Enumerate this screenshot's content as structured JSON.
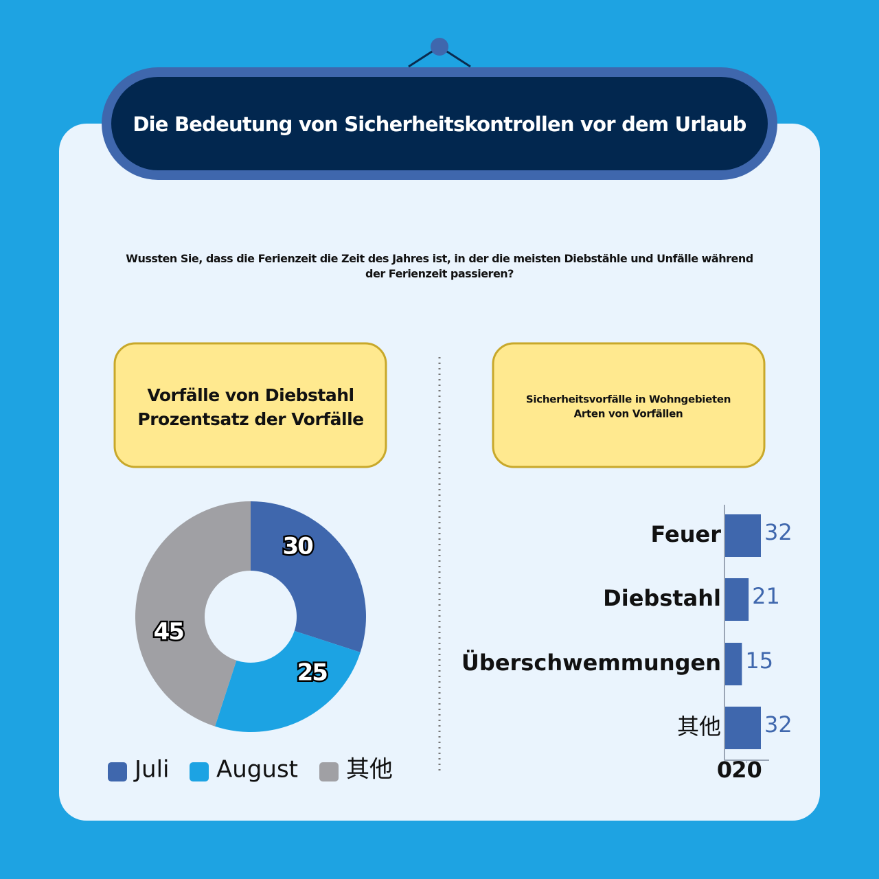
{
  "header": {
    "title": "Die Bedeutung von Sicherheitskontrollen vor dem Urlaub"
  },
  "intro": "Wussten Sie, dass die Ferienzeit die Zeit des Jahres ist, in der die meisten Diebstähle und Unfälle während der Ferienzeit passieren?",
  "chart_data": [
    {
      "type": "donut",
      "title": "Vorfälle von Diebstahl",
      "subtitle": "Prozentsatz der Vorfälle",
      "categories": [
        "Juli",
        "August",
        "其他"
      ],
      "values": [
        30,
        25,
        45
      ],
      "colors": [
        "#3f67ad",
        "#1ca3e3",
        "#a0a0a4"
      ],
      "legend": "bottom"
    },
    {
      "type": "hbar",
      "title": "Sicherheitsvorfälle in Wohngebieten",
      "subtitle": "Arten von Vorfällen",
      "categories": [
        "Feuer",
        "Diebstahl",
        "Überschwemmungen",
        "其他"
      ],
      "values": [
        32,
        21,
        15,
        32
      ],
      "color": "#3f67ad",
      "xlim": [
        0,
        40
      ],
      "xticks": [
        0,
        20
      ]
    }
  ]
}
